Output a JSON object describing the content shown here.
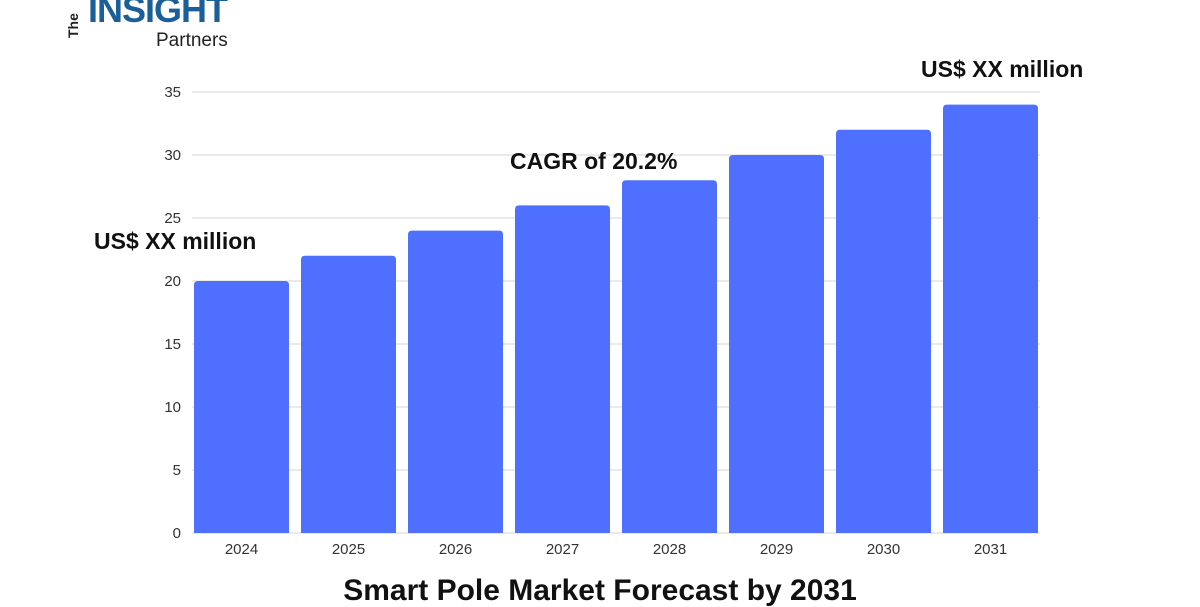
{
  "logo": {
    "the": "The",
    "insight": "INSIGHT",
    "partners": "Partners"
  },
  "chart_data": {
    "type": "bar",
    "title": "Smart Pole Market Forecast by 2031",
    "categories": [
      "2024",
      "2025",
      "2026",
      "2027",
      "2028",
      "2029",
      "2030",
      "2031"
    ],
    "values": [
      20,
      22,
      24,
      26,
      28,
      30,
      32,
      34
    ],
    "yticks": [
      "0",
      "5",
      "10",
      "15",
      "20",
      "25",
      "30",
      "35"
    ],
    "ylim": [
      0,
      35
    ],
    "grid": true,
    "bar_color": "#4f70ff",
    "annotations": {
      "start": "US$ XX million",
      "cagr": "CAGR of 20.2%",
      "end": "US$ XX million"
    }
  }
}
